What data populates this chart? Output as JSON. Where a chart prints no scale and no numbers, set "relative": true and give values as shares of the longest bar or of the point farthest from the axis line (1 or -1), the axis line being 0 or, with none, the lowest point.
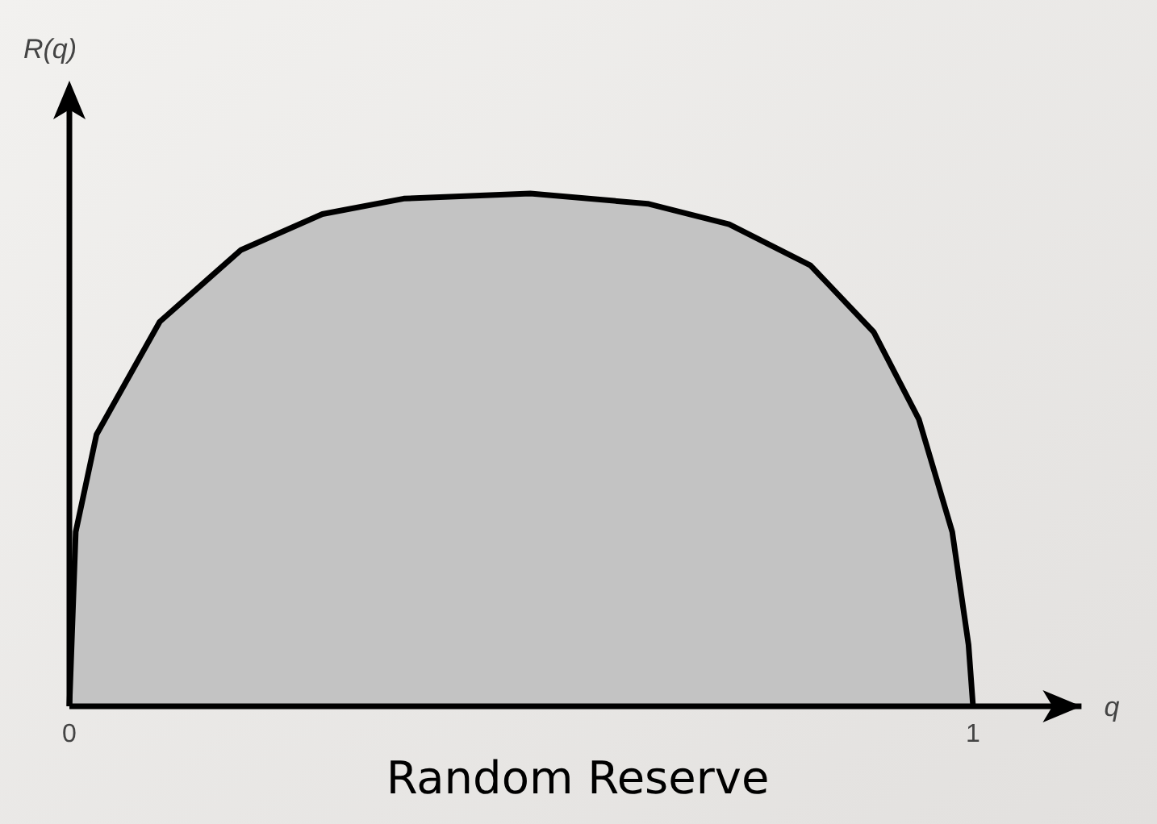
{
  "chart_data": {
    "type": "area",
    "title": "Random Reserve",
    "xlabel": "q",
    "ylabel": "R(q)",
    "relative": true,
    "x": [
      0,
      0.007,
      0.03,
      0.1,
      0.19,
      0.28,
      0.37,
      0.51,
      0.64,
      0.73,
      0.82,
      0.89,
      0.94,
      0.977,
      0.995,
      1
    ],
    "series": [
      {
        "color": "#000000",
        "values": [
          0,
          0.34,
          0.53,
          0.75,
          0.89,
          0.96,
          0.99,
          1,
          0.98,
          0.94,
          0.86,
          0.73,
          0.56,
          0.34,
          0.12,
          0
        ]
      }
    ],
    "xlim": [
      0,
      1.12
    ],
    "xticks": [
      0,
      1
    ],
    "grid": false
  }
}
